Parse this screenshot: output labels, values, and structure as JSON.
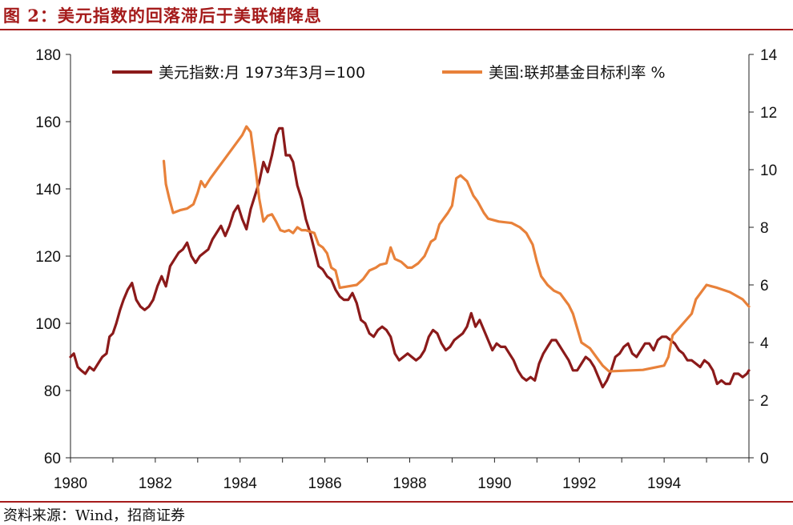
{
  "figure": {
    "title": "图 2：美元指数的回落滞后于美联储降息",
    "source": "资料来源：Wind，招商证券"
  },
  "chart_data": {
    "type": "line",
    "title": "图 2：美元指数的回落滞后于美联储降息",
    "xlabel": "",
    "ylabel_left": "",
    "ylabel_right": "",
    "xlim": [
      1980.0,
      1996.0
    ],
    "ylim_left": [
      60,
      180
    ],
    "ylim_right": [
      0,
      14
    ],
    "x_ticks": [
      "1980",
      "1982",
      "1984",
      "1986",
      "1988",
      "1990",
      "1992",
      "1994"
    ],
    "y_left_ticks": [
      "60",
      "80",
      "100",
      "120",
      "140",
      "160",
      "180"
    ],
    "y_right_ticks": [
      "0",
      "2",
      "4",
      "6",
      "8",
      "10",
      "12",
      "14"
    ],
    "grid": false,
    "legend_position": "top",
    "series": [
      {
        "name": "美元指数:月 1973年3月=100",
        "axis": "left",
        "color": "#8b1a1a",
        "points": [
          [
            1980.0,
            90
          ],
          [
            1980.08,
            91
          ],
          [
            1980.17,
            87
          ],
          [
            1980.25,
            86
          ],
          [
            1980.35,
            85
          ],
          [
            1980.45,
            87
          ],
          [
            1980.55,
            86
          ],
          [
            1980.65,
            88
          ],
          [
            1980.75,
            90
          ],
          [
            1980.85,
            91
          ],
          [
            1980.92,
            96
          ],
          [
            1981.0,
            97
          ],
          [
            1981.08,
            100
          ],
          [
            1981.17,
            104
          ],
          [
            1981.25,
            107
          ],
          [
            1981.35,
            110
          ],
          [
            1981.45,
            112
          ],
          [
            1981.55,
            107
          ],
          [
            1981.65,
            105
          ],
          [
            1981.75,
            104
          ],
          [
            1981.85,
            105
          ],
          [
            1981.95,
            107
          ],
          [
            1982.05,
            111
          ],
          [
            1982.15,
            114
          ],
          [
            1982.25,
            111
          ],
          [
            1982.35,
            117
          ],
          [
            1982.45,
            119
          ],
          [
            1982.55,
            121
          ],
          [
            1982.65,
            122
          ],
          [
            1982.75,
            124
          ],
          [
            1982.85,
            120
          ],
          [
            1982.95,
            118
          ],
          [
            1983.05,
            120
          ],
          [
            1983.15,
            121
          ],
          [
            1983.25,
            122
          ],
          [
            1983.35,
            125
          ],
          [
            1983.45,
            127
          ],
          [
            1983.55,
            129
          ],
          [
            1983.65,
            126
          ],
          [
            1983.75,
            129
          ],
          [
            1983.85,
            133
          ],
          [
            1983.95,
            135
          ],
          [
            1984.05,
            131
          ],
          [
            1984.15,
            128
          ],
          [
            1984.25,
            134
          ],
          [
            1984.35,
            138
          ],
          [
            1984.45,
            142
          ],
          [
            1984.55,
            148
          ],
          [
            1984.65,
            145
          ],
          [
            1984.75,
            150
          ],
          [
            1984.85,
            156
          ],
          [
            1984.92,
            158
          ],
          [
            1985.0,
            158
          ],
          [
            1985.08,
            150
          ],
          [
            1985.17,
            150
          ],
          [
            1985.25,
            148
          ],
          [
            1985.35,
            141
          ],
          [
            1985.45,
            137
          ],
          [
            1985.55,
            131
          ],
          [
            1985.65,
            127
          ],
          [
            1985.75,
            122
          ],
          [
            1985.85,
            117
          ],
          [
            1985.95,
            116
          ],
          [
            1986.05,
            114
          ],
          [
            1986.15,
            113
          ],
          [
            1986.25,
            110
          ],
          [
            1986.35,
            108
          ],
          [
            1986.45,
            107
          ],
          [
            1986.55,
            107
          ],
          [
            1986.65,
            109
          ],
          [
            1986.75,
            106
          ],
          [
            1986.85,
            101
          ],
          [
            1986.95,
            100
          ],
          [
            1987.05,
            97
          ],
          [
            1987.15,
            96
          ],
          [
            1987.25,
            98
          ],
          [
            1987.35,
            99
          ],
          [
            1987.45,
            98
          ],
          [
            1987.55,
            96
          ],
          [
            1987.65,
            91
          ],
          [
            1987.75,
            89
          ],
          [
            1987.85,
            90
          ],
          [
            1987.95,
            91
          ],
          [
            1988.05,
            90
          ],
          [
            1988.15,
            89
          ],
          [
            1988.25,
            90
          ],
          [
            1988.35,
            92
          ],
          [
            1988.45,
            96
          ],
          [
            1988.55,
            98
          ],
          [
            1988.65,
            97
          ],
          [
            1988.75,
            94
          ],
          [
            1988.85,
            92
          ],
          [
            1988.95,
            93
          ],
          [
            1989.05,
            95
          ],
          [
            1989.15,
            96
          ],
          [
            1989.25,
            97
          ],
          [
            1989.35,
            99
          ],
          [
            1989.45,
            103
          ],
          [
            1989.55,
            99
          ],
          [
            1989.65,
            101
          ],
          [
            1989.75,
            98
          ],
          [
            1989.85,
            95
          ],
          [
            1989.95,
            92
          ],
          [
            1990.05,
            94
          ],
          [
            1990.15,
            93
          ],
          [
            1990.25,
            93
          ],
          [
            1990.35,
            91
          ],
          [
            1990.45,
            89
          ],
          [
            1990.55,
            86
          ],
          [
            1990.65,
            84
          ],
          [
            1990.75,
            83
          ],
          [
            1990.85,
            84
          ],
          [
            1990.95,
            83
          ],
          [
            1991.05,
            88
          ],
          [
            1991.15,
            91
          ],
          [
            1991.25,
            93
          ],
          [
            1991.35,
            95
          ],
          [
            1991.45,
            95
          ],
          [
            1991.55,
            93
          ],
          [
            1991.65,
            91
          ],
          [
            1991.75,
            89
          ],
          [
            1991.85,
            86
          ],
          [
            1991.95,
            86
          ],
          [
            1992.05,
            88
          ],
          [
            1992.15,
            90
          ],
          [
            1992.25,
            89
          ],
          [
            1992.35,
            87
          ],
          [
            1992.45,
            84
          ],
          [
            1992.55,
            81
          ],
          [
            1992.65,
            83
          ],
          [
            1992.75,
            86
          ],
          [
            1992.85,
            90
          ],
          [
            1992.95,
            91
          ],
          [
            1993.05,
            93
          ],
          [
            1993.15,
            94
          ],
          [
            1993.25,
            91
          ],
          [
            1993.35,
            90
          ],
          [
            1993.45,
            92
          ],
          [
            1993.55,
            94
          ],
          [
            1993.65,
            94
          ],
          [
            1993.75,
            92
          ],
          [
            1993.85,
            95
          ],
          [
            1993.95,
            96
          ],
          [
            1994.05,
            96
          ],
          [
            1994.15,
            95
          ],
          [
            1994.25,
            94
          ],
          [
            1994.35,
            92
          ],
          [
            1994.45,
            91
          ],
          [
            1994.55,
            89
          ],
          [
            1994.65,
            89
          ],
          [
            1994.75,
            88
          ],
          [
            1994.85,
            87
          ],
          [
            1994.95,
            89
          ],
          [
            1995.05,
            88
          ],
          [
            1995.15,
            86
          ],
          [
            1995.25,
            82
          ],
          [
            1995.35,
            83
          ],
          [
            1995.45,
            82
          ],
          [
            1995.55,
            82
          ],
          [
            1995.65,
            85
          ],
          [
            1995.75,
            85
          ],
          [
            1995.85,
            84
          ],
          [
            1995.95,
            85
          ],
          [
            1996.0,
            86
          ]
        ]
      },
      {
        "name": "美国:联邦基金目标利率 %",
        "axis": "right",
        "color": "#e8813a",
        "points": [
          [
            1982.2,
            10.3
          ],
          [
            1982.25,
            9.5
          ],
          [
            1982.33,
            9.0
          ],
          [
            1982.42,
            8.5
          ],
          [
            1982.6,
            8.6
          ],
          [
            1982.75,
            8.65
          ],
          [
            1982.9,
            8.8
          ],
          [
            1983.0,
            9.2
          ],
          [
            1983.08,
            9.6
          ],
          [
            1983.17,
            9.4
          ],
          [
            1983.3,
            9.7
          ],
          [
            1983.45,
            10.0
          ],
          [
            1983.6,
            10.3
          ],
          [
            1983.75,
            10.6
          ],
          [
            1983.9,
            10.9
          ],
          [
            1984.05,
            11.2
          ],
          [
            1984.15,
            11.5
          ],
          [
            1984.25,
            11.3
          ],
          [
            1984.35,
            10.2
          ],
          [
            1984.45,
            9.0
          ],
          [
            1984.55,
            8.2
          ],
          [
            1984.65,
            8.4
          ],
          [
            1984.75,
            8.45
          ],
          [
            1984.85,
            8.2
          ],
          [
            1984.95,
            7.9
          ],
          [
            1985.05,
            7.85
          ],
          [
            1985.15,
            7.9
          ],
          [
            1985.25,
            7.8
          ],
          [
            1985.35,
            8.0
          ],
          [
            1985.45,
            7.9
          ],
          [
            1985.55,
            7.9
          ],
          [
            1985.65,
            7.85
          ],
          [
            1985.75,
            7.8
          ],
          [
            1985.85,
            7.4
          ],
          [
            1985.95,
            7.3
          ],
          [
            1986.05,
            7.1
          ],
          [
            1986.15,
            6.6
          ],
          [
            1986.25,
            6.5
          ],
          [
            1986.35,
            5.9
          ],
          [
            1986.55,
            5.95
          ],
          [
            1986.75,
            6.0
          ],
          [
            1986.9,
            6.2
          ],
          [
            1987.05,
            6.5
          ],
          [
            1987.2,
            6.6
          ],
          [
            1987.3,
            6.7
          ],
          [
            1987.45,
            6.75
          ],
          [
            1987.55,
            7.3
          ],
          [
            1987.65,
            6.9
          ],
          [
            1987.8,
            6.8
          ],
          [
            1987.95,
            6.6
          ],
          [
            1988.05,
            6.6
          ],
          [
            1988.2,
            6.75
          ],
          [
            1988.35,
            7.0
          ],
          [
            1988.5,
            7.5
          ],
          [
            1988.6,
            7.6
          ],
          [
            1988.7,
            8.1
          ],
          [
            1988.8,
            8.3
          ],
          [
            1988.9,
            8.5
          ],
          [
            1989.0,
            8.75
          ],
          [
            1989.1,
            9.7
          ],
          [
            1989.2,
            9.8
          ],
          [
            1989.35,
            9.6
          ],
          [
            1989.5,
            9.1
          ],
          [
            1989.6,
            8.9
          ],
          [
            1989.75,
            8.5
          ],
          [
            1989.85,
            8.3
          ],
          [
            1990.1,
            8.2
          ],
          [
            1990.4,
            8.15
          ],
          [
            1990.6,
            8.0
          ],
          [
            1990.75,
            7.8
          ],
          [
            1990.9,
            7.4
          ],
          [
            1991.0,
            6.8
          ],
          [
            1991.1,
            6.3
          ],
          [
            1991.25,
            6.0
          ],
          [
            1991.4,
            5.8
          ],
          [
            1991.55,
            5.7
          ],
          [
            1991.65,
            5.5
          ],
          [
            1991.75,
            5.3
          ],
          [
            1991.85,
            5.0
          ],
          [
            1991.95,
            4.5
          ],
          [
            1992.05,
            4.0
          ],
          [
            1992.25,
            3.8
          ],
          [
            1992.4,
            3.5
          ],
          [
            1992.55,
            3.2
          ],
          [
            1992.7,
            3.0
          ],
          [
            1993.5,
            3.05
          ],
          [
            1994.0,
            3.2
          ],
          [
            1994.1,
            3.5
          ],
          [
            1994.2,
            4.25
          ],
          [
            1994.35,
            4.5
          ],
          [
            1994.5,
            4.75
          ],
          [
            1994.65,
            5.0
          ],
          [
            1994.75,
            5.5
          ],
          [
            1994.9,
            5.8
          ],
          [
            1995.0,
            6.0
          ],
          [
            1995.25,
            5.9
          ],
          [
            1995.55,
            5.75
          ],
          [
            1995.85,
            5.5
          ],
          [
            1996.0,
            5.25
          ]
        ]
      }
    ]
  }
}
